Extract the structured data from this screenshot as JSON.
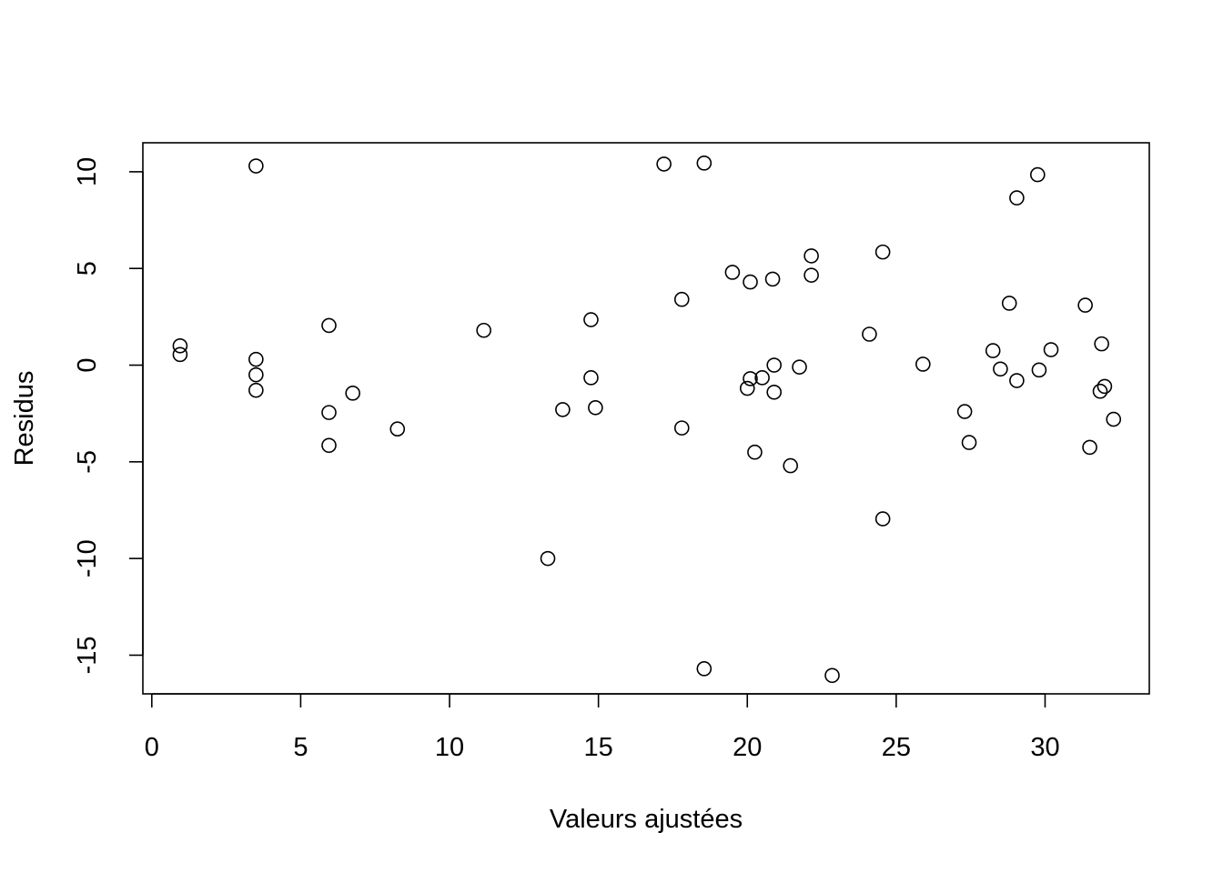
{
  "chart_data": {
    "type": "scatter",
    "title": "",
    "xlabel": "Valeurs ajustées",
    "ylabel": "Residus",
    "xlim": [
      -0.3,
      33.5
    ],
    "ylim": [
      -17.0,
      11.5
    ],
    "xticks": [
      0,
      5,
      10,
      15,
      20,
      25,
      30
    ],
    "xtick_labels": [
      "0",
      "5",
      "10",
      "15",
      "20",
      "25",
      "30"
    ],
    "yticks": [
      -15,
      -10,
      -5,
      0,
      5,
      10
    ],
    "ytick_labels": [
      "-15",
      "-10",
      "-5",
      "0",
      "5",
      "10"
    ],
    "grid": false,
    "legend": "none",
    "marker": "open-circle",
    "points": [
      {
        "x": 0.95,
        "y": 1.0
      },
      {
        "x": 0.95,
        "y": 0.55
      },
      {
        "x": 3.5,
        "y": 10.3
      },
      {
        "x": 3.5,
        "y": 0.3
      },
      {
        "x": 3.5,
        "y": -0.5
      },
      {
        "x": 3.5,
        "y": -1.3
      },
      {
        "x": 5.95,
        "y": 2.05
      },
      {
        "x": 5.95,
        "y": -2.45
      },
      {
        "x": 5.95,
        "y": -4.15
      },
      {
        "x": 6.75,
        "y": -1.45
      },
      {
        "x": 8.25,
        "y": -3.3
      },
      {
        "x": 11.15,
        "y": 1.8
      },
      {
        "x": 13.3,
        "y": -10.0
      },
      {
        "x": 13.8,
        "y": -2.3
      },
      {
        "x": 14.75,
        "y": 2.35
      },
      {
        "x": 14.75,
        "y": -0.65
      },
      {
        "x": 14.9,
        "y": -2.2
      },
      {
        "x": 17.2,
        "y": 10.4
      },
      {
        "x": 17.8,
        "y": 3.4
      },
      {
        "x": 17.8,
        "y": -3.25
      },
      {
        "x": 18.55,
        "y": 10.45
      },
      {
        "x": 18.55,
        "y": -15.7
      },
      {
        "x": 19.5,
        "y": 4.8
      },
      {
        "x": 20.0,
        "y": -1.2
      },
      {
        "x": 20.1,
        "y": 4.3
      },
      {
        "x": 20.1,
        "y": -0.7
      },
      {
        "x": 20.25,
        "y": -4.5
      },
      {
        "x": 20.5,
        "y": -0.65
      },
      {
        "x": 20.85,
        "y": 4.45
      },
      {
        "x": 20.9,
        "y": 0.0
      },
      {
        "x": 20.9,
        "y": -1.4
      },
      {
        "x": 21.45,
        "y": -5.2
      },
      {
        "x": 21.75,
        "y": -0.1
      },
      {
        "x": 22.15,
        "y": 5.65
      },
      {
        "x": 22.15,
        "y": 4.65
      },
      {
        "x": 22.85,
        "y": -16.05
      },
      {
        "x": 24.1,
        "y": 1.6
      },
      {
        "x": 24.55,
        "y": 5.85
      },
      {
        "x": 24.55,
        "y": -7.95
      },
      {
        "x": 25.9,
        "y": 0.05
      },
      {
        "x": 27.3,
        "y": -2.4
      },
      {
        "x": 27.45,
        "y": -4.0
      },
      {
        "x": 28.25,
        "y": 0.75
      },
      {
        "x": 28.5,
        "y": -0.2
      },
      {
        "x": 28.8,
        "y": 3.2
      },
      {
        "x": 29.05,
        "y": 8.65
      },
      {
        "x": 29.05,
        "y": -0.8
      },
      {
        "x": 29.75,
        "y": 9.85
      },
      {
        "x": 29.8,
        "y": -0.25
      },
      {
        "x": 30.2,
        "y": 0.8
      },
      {
        "x": 31.35,
        "y": 3.1
      },
      {
        "x": 31.5,
        "y": -4.25
      },
      {
        "x": 31.85,
        "y": -1.35
      },
      {
        "x": 31.9,
        "y": 1.1
      },
      {
        "x": 32.0,
        "y": -1.1
      },
      {
        "x": 32.3,
        "y": -2.8
      }
    ]
  }
}
